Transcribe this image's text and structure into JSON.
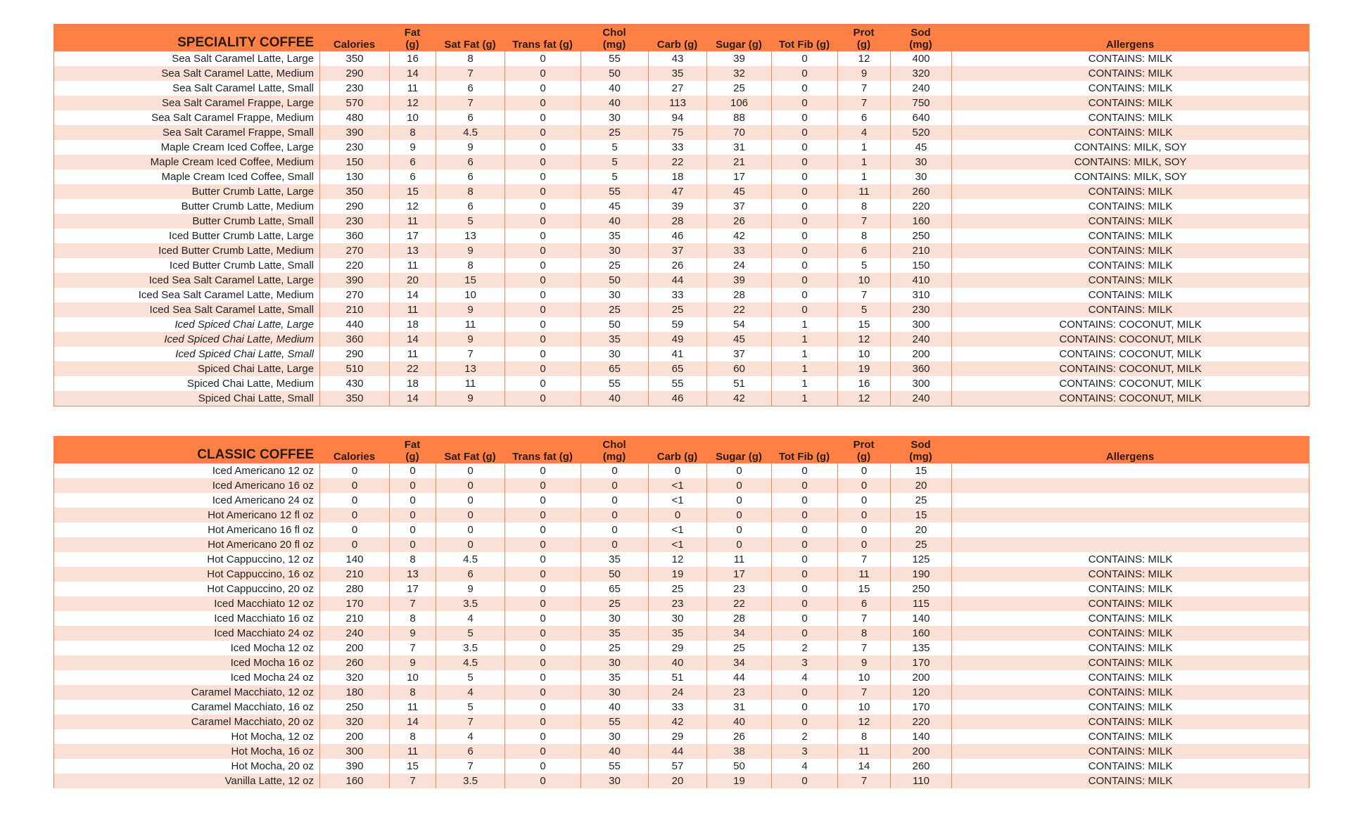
{
  "colors": {
    "header_bg": "#FF7F45",
    "stripe": "#FBE1D5",
    "border": "#F0834F"
  },
  "columns": [
    [
      "Calories"
    ],
    [
      "Fat",
      "(g)"
    ],
    [
      "Sat Fat (g)"
    ],
    [
      "Trans fat (g)"
    ],
    [
      "Chol",
      "(mg)"
    ],
    [
      "Carb (g)"
    ],
    [
      "Sugar (g)"
    ],
    [
      "Tot Fib (g)"
    ],
    [
      "Prot",
      "(g)"
    ],
    [
      "Sod",
      "(mg)"
    ],
    [
      "Allergens"
    ]
  ],
  "tables": [
    {
      "title": "SPECIALITY COFFEE",
      "rows": [
        {
          "name": "Sea Salt Caramel Latte, Large",
          "v": [
            "350",
            "16",
            "8",
            "0",
            "55",
            "43",
            "39",
            "0",
            "12",
            "400",
            "CONTAINS: MILK"
          ]
        },
        {
          "name": "Sea Salt Caramel Latte, Medium",
          "v": [
            "290",
            "14",
            "7",
            "0",
            "50",
            "35",
            "32",
            "0",
            "9",
            "320",
            "CONTAINS: MILK"
          ]
        },
        {
          "name": "Sea Salt Caramel Latte, Small",
          "v": [
            "230",
            "11",
            "6",
            "0",
            "40",
            "27",
            "25",
            "0",
            "7",
            "240",
            "CONTAINS: MILK"
          ]
        },
        {
          "name": "Sea Salt Caramel Frappe, Large",
          "v": [
            "570",
            "12",
            "7",
            "0",
            "40",
            "113",
            "106",
            "0",
            "7",
            "750",
            "CONTAINS: MILK"
          ]
        },
        {
          "name": "Sea Salt Caramel Frappe, Medium",
          "v": [
            "480",
            "10",
            "6",
            "0",
            "30",
            "94",
            "88",
            "0",
            "6",
            "640",
            "CONTAINS: MILK"
          ]
        },
        {
          "name": "Sea Salt Caramel Frappe, Small",
          "v": [
            "390",
            "8",
            "4.5",
            "0",
            "25",
            "75",
            "70",
            "0",
            "4",
            "520",
            "CONTAINS: MILK"
          ]
        },
        {
          "name": "Maple Cream Iced Coffee, Large",
          "v": [
            "230",
            "9",
            "9",
            "0",
            "5",
            "33",
            "31",
            "0",
            "1",
            "45",
            "CONTAINS: MILK, SOY"
          ]
        },
        {
          "name": "Maple Cream Iced Coffee, Medium",
          "v": [
            "150",
            "6",
            "6",
            "0",
            "5",
            "22",
            "21",
            "0",
            "1",
            "30",
            "CONTAINS: MILK, SOY"
          ]
        },
        {
          "name": "Maple Cream Iced Coffee, Small",
          "v": [
            "130",
            "6",
            "6",
            "0",
            "5",
            "18",
            "17",
            "0",
            "1",
            "30",
            "CONTAINS: MILK, SOY"
          ]
        },
        {
          "name": "Butter Crumb Latte, Large",
          "v": [
            "350",
            "15",
            "8",
            "0",
            "55",
            "47",
            "45",
            "0",
            "11",
            "260",
            "CONTAINS: MILK"
          ]
        },
        {
          "name": "Butter Crumb Latte, Medium",
          "v": [
            "290",
            "12",
            "6",
            "0",
            "45",
            "39",
            "37",
            "0",
            "8",
            "220",
            "CONTAINS: MILK"
          ]
        },
        {
          "name": "Butter Crumb Latte, Small",
          "v": [
            "230",
            "11",
            "5",
            "0",
            "40",
            "28",
            "26",
            "0",
            "7",
            "160",
            "CONTAINS: MILK"
          ]
        },
        {
          "name": "Iced Butter Crumb Latte, Large",
          "v": [
            "360",
            "17",
            "13",
            "0",
            "35",
            "46",
            "42",
            "0",
            "8",
            "250",
            "CONTAINS: MILK"
          ]
        },
        {
          "name": "Iced Butter Crumb Latte, Medium",
          "v": [
            "270",
            "13",
            "9",
            "0",
            "30",
            "37",
            "33",
            "0",
            "6",
            "210",
            "CONTAINS: MILK"
          ]
        },
        {
          "name": "Iced Butter Crumb Latte, Small",
          "v": [
            "220",
            "11",
            "8",
            "0",
            "25",
            "26",
            "24",
            "0",
            "5",
            "150",
            "CONTAINS: MILK"
          ]
        },
        {
          "name": "Iced Sea Salt Caramel Latte, Large",
          "v": [
            "390",
            "20",
            "15",
            "0",
            "50",
            "44",
            "39",
            "0",
            "10",
            "410",
            "CONTAINS: MILK"
          ]
        },
        {
          "name": "Iced Sea Salt Caramel Latte, Medium",
          "v": [
            "270",
            "14",
            "10",
            "0",
            "30",
            "33",
            "28",
            "0",
            "7",
            "310",
            "CONTAINS: MILK"
          ]
        },
        {
          "name": "Iced Sea Salt Caramel Latte, Small",
          "v": [
            "210",
            "11",
            "9",
            "0",
            "25",
            "25",
            "22",
            "0",
            "5",
            "230",
            "CONTAINS: MILK"
          ]
        },
        {
          "name": "Iced Spiced Chai Latte, Large",
          "italic": true,
          "v": [
            "440",
            "18",
            "11",
            "0",
            "50",
            "59",
            "54",
            "1",
            "15",
            "300",
            "CONTAINS: COCONUT, MILK"
          ]
        },
        {
          "name": "Iced Spiced Chai Latte, Medium",
          "italic": true,
          "v": [
            "360",
            "14",
            "9",
            "0",
            "35",
            "49",
            "45",
            "1",
            "12",
            "240",
            "CONTAINS: COCONUT, MILK"
          ]
        },
        {
          "name": "Iced Spiced Chai Latte, Small",
          "italic": true,
          "v": [
            "290",
            "11",
            "7",
            "0",
            "30",
            "41",
            "37",
            "1",
            "10",
            "200",
            "CONTAINS: COCONUT, MILK"
          ]
        },
        {
          "name": "Spiced Chai Latte, Large",
          "v": [
            "510",
            "22",
            "13",
            "0",
            "65",
            "65",
            "60",
            "1",
            "19",
            "360",
            "CONTAINS: COCONUT, MILK"
          ]
        },
        {
          "name": "Spiced Chai Latte, Medium",
          "v": [
            "430",
            "18",
            "11",
            "0",
            "55",
            "55",
            "51",
            "1",
            "16",
            "300",
            "CONTAINS: COCONUT, MILK"
          ]
        },
        {
          "name": "Spiced Chai Latte, Small",
          "v": [
            "350",
            "14",
            "9",
            "0",
            "40",
            "46",
            "42",
            "1",
            "12",
            "240",
            "CONTAINS: COCONUT, MILK"
          ]
        }
      ]
    },
    {
      "title": "CLASSIC COFFEE",
      "rows": [
        {
          "name": "Iced Americano 12 oz",
          "v": [
            "0",
            "0",
            "0",
            "0",
            "0",
            "0",
            "0",
            "0",
            "0",
            "15",
            ""
          ]
        },
        {
          "name": "Iced Americano 16 oz",
          "v": [
            "0",
            "0",
            "0",
            "0",
            "0",
            "<1",
            "0",
            "0",
            "0",
            "20",
            ""
          ]
        },
        {
          "name": "Iced Americano 24 oz",
          "v": [
            "0",
            "0",
            "0",
            "0",
            "0",
            "<1",
            "0",
            "0",
            "0",
            "25",
            ""
          ]
        },
        {
          "name": "Hot Americano 12 fl oz",
          "v": [
            "0",
            "0",
            "0",
            "0",
            "0",
            "0",
            "0",
            "0",
            "0",
            "15",
            ""
          ]
        },
        {
          "name": "Hot Americano 16 fl oz",
          "v": [
            "0",
            "0",
            "0",
            "0",
            "0",
            "<1",
            "0",
            "0",
            "0",
            "20",
            ""
          ]
        },
        {
          "name": "Hot Americano 20 fl oz",
          "v": [
            "0",
            "0",
            "0",
            "0",
            "0",
            "<1",
            "0",
            "0",
            "0",
            "25",
            ""
          ]
        },
        {
          "name": "Hot Cappuccino, 12 oz",
          "v": [
            "140",
            "8",
            "4.5",
            "0",
            "35",
            "12",
            "11",
            "0",
            "7",
            "125",
            "CONTAINS: MILK"
          ]
        },
        {
          "name": "Hot Cappuccino, 16 oz",
          "v": [
            "210",
            "13",
            "6",
            "0",
            "50",
            "19",
            "17",
            "0",
            "11",
            "190",
            "CONTAINS: MILK"
          ]
        },
        {
          "name": "Hot Cappuccino, 20 oz",
          "v": [
            "280",
            "17",
            "9",
            "0",
            "65",
            "25",
            "23",
            "0",
            "15",
            "250",
            "CONTAINS: MILK"
          ]
        },
        {
          "name": "Iced Macchiato 12 oz",
          "v": [
            "170",
            "7",
            "3.5",
            "0",
            "25",
            "23",
            "22",
            "0",
            "6",
            "115",
            "CONTAINS: MILK"
          ]
        },
        {
          "name": "Iced Macchiato 16 oz",
          "v": [
            "210",
            "8",
            "4",
            "0",
            "30",
            "30",
            "28",
            "0",
            "7",
            "140",
            "CONTAINS: MILK"
          ]
        },
        {
          "name": "Iced Macchiato 24 oz",
          "v": [
            "240",
            "9",
            "5",
            "0",
            "35",
            "35",
            "34",
            "0",
            "8",
            "160",
            "CONTAINS: MILK"
          ]
        },
        {
          "name": "Iced Mocha 12 oz",
          "v": [
            "200",
            "7",
            "3.5",
            "0",
            "25",
            "29",
            "25",
            "2",
            "7",
            "135",
            "CONTAINS: MILK"
          ]
        },
        {
          "name": "Iced Mocha 16 oz",
          "v": [
            "260",
            "9",
            "4.5",
            "0",
            "30",
            "40",
            "34",
            "3",
            "9",
            "170",
            "CONTAINS: MILK"
          ]
        },
        {
          "name": "Iced Mocha 24 oz",
          "v": [
            "320",
            "10",
            "5",
            "0",
            "35",
            "51",
            "44",
            "4",
            "10",
            "200",
            "CONTAINS: MILK"
          ]
        },
        {
          "name": "Caramel Macchiato, 12 oz",
          "v": [
            "180",
            "8",
            "4",
            "0",
            "30",
            "24",
            "23",
            "0",
            "7",
            "120",
            "CONTAINS: MILK"
          ]
        },
        {
          "name": "Caramel Macchiato, 16 oz",
          "v": [
            "250",
            "11",
            "5",
            "0",
            "40",
            "33",
            "31",
            "0",
            "10",
            "170",
            "CONTAINS: MILK"
          ]
        },
        {
          "name": "Caramel Macchiato, 20 oz",
          "v": [
            "320",
            "14",
            "7",
            "0",
            "55",
            "42",
            "40",
            "0",
            "12",
            "220",
            "CONTAINS: MILK"
          ]
        },
        {
          "name": "Hot Mocha, 12 oz",
          "v": [
            "200",
            "8",
            "4",
            "0",
            "30",
            "29",
            "26",
            "2",
            "8",
            "140",
            "CONTAINS: MILK"
          ]
        },
        {
          "name": "Hot Mocha, 16 oz",
          "v": [
            "300",
            "11",
            "6",
            "0",
            "40",
            "44",
            "38",
            "3",
            "11",
            "200",
            "CONTAINS: MILK"
          ]
        },
        {
          "name": "Hot Mocha, 20 oz",
          "v": [
            "390",
            "15",
            "7",
            "0",
            "55",
            "57",
            "50",
            "4",
            "14",
            "260",
            "CONTAINS: MILK"
          ]
        },
        {
          "name": "Vanilla Latte, 12 oz",
          "v": [
            "160",
            "7",
            "3.5",
            "0",
            "30",
            "20",
            "19",
            "0",
            "7",
            "110",
            "CONTAINS: MILK"
          ]
        }
      ]
    }
  ]
}
